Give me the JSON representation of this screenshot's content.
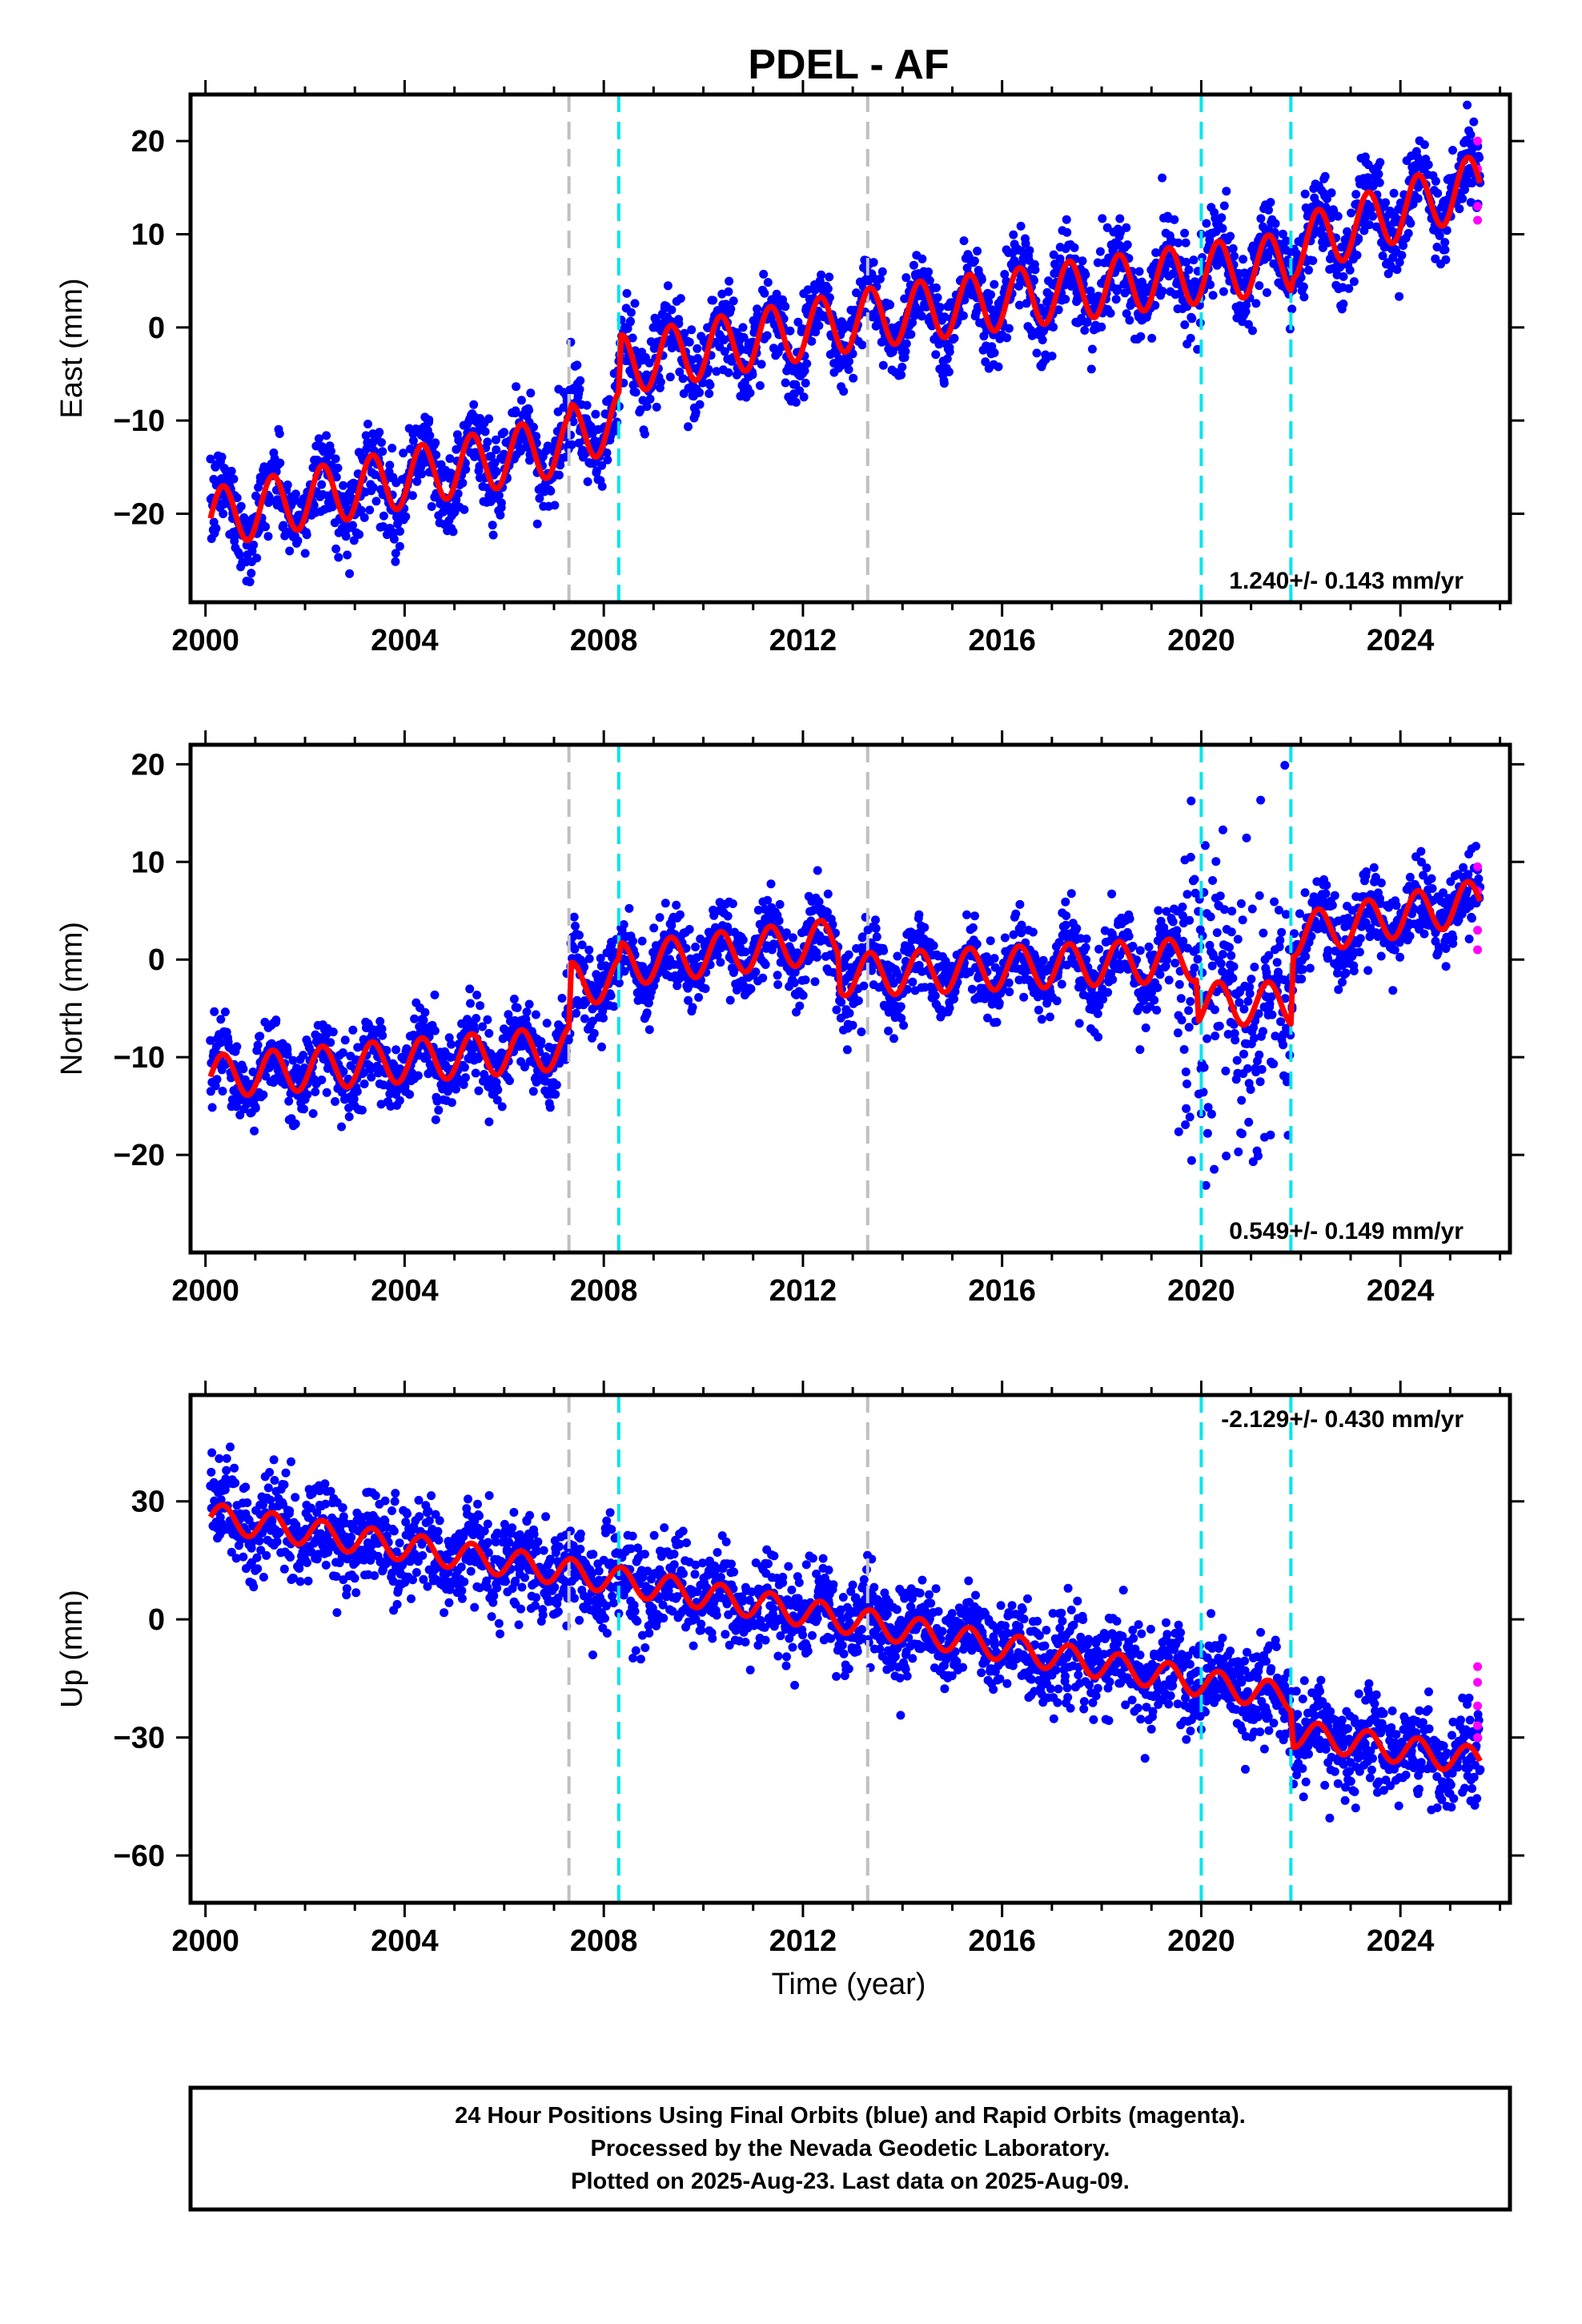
{
  "title": "PDEL - AF",
  "xlabel": "Time (year)",
  "footer": {
    "line1": "24 Hour Positions Using Final Orbits (blue) and Rapid Orbits (magenta).",
    "line2": "Processed by the Nevada Geodetic Laboratory.",
    "line3": "Plotted on 2025-Aug-23. Last data on 2025-Aug-09."
  },
  "colors": {
    "final_orbits": "#0000ff",
    "rapid_orbits": "#ff00ff",
    "model": "#ff0000",
    "equipment_change": "#c0c0c0",
    "earthquake": "#00e5ee"
  },
  "chart_data": [
    {
      "type": "scatter",
      "ylabel": "East (mm)",
      "rate_label": "1.240+/- 0.143 mm/yr",
      "xlim": [
        1999.7,
        2026.2
      ],
      "ylim": [
        -29.5,
        25
      ],
      "x_ticks": [
        2000,
        2004,
        2008,
        2012,
        2016,
        2020,
        2024
      ],
      "x_tick_labels": [
        "2000",
        "2004",
        "2008",
        "2012",
        "2016",
        "2020",
        "2024"
      ],
      "y_ticks": [
        -20,
        -10,
        0,
        10,
        20
      ],
      "y_tick_labels": [
        "−20",
        "−10",
        "0",
        "10",
        "20"
      ],
      "gray_lines": [
        2007.3,
        2013.3
      ],
      "cyan_lines": [
        2008.3,
        2020.0,
        2021.8
      ],
      "model_trend": [
        [
          2000.1,
          -20.5
        ],
        [
          2007.3,
          -12.5
        ],
        [
          2007.35,
          -11.5
        ],
        [
          2008.3,
          -10.0
        ],
        [
          2008.35,
          -4.0
        ],
        [
          2013.3,
          1.0
        ],
        [
          2020.0,
          5.8
        ],
        [
          2021.8,
          7.0
        ],
        [
          2021.85,
          8.5
        ],
        [
          2025.6,
          15.5
        ]
      ],
      "seasonal_amplitude": 3.2,
      "scatter_sd": 2.3,
      "rapid_points": [
        [
          2025.55,
          20.0
        ],
        [
          2025.55,
          17.0
        ],
        [
          2025.55,
          13.0
        ],
        [
          2025.55,
          11.5
        ]
      ]
    },
    {
      "type": "scatter",
      "ylabel": "North (mm)",
      "rate_label": "0.549+/- 0.149 mm/yr",
      "xlim": [
        1999.7,
        2026.2
      ],
      "ylim": [
        -30,
        22
      ],
      "x_ticks": [
        2000,
        2004,
        2008,
        2012,
        2016,
        2020,
        2024
      ],
      "x_tick_labels": [
        "2000",
        "2004",
        "2008",
        "2012",
        "2016",
        "2020",
        "2024"
      ],
      "y_ticks": [
        -20,
        -10,
        0,
        10,
        20
      ],
      "y_tick_labels": [
        "−20",
        "−10",
        "0",
        "10",
        "20"
      ],
      "gray_lines": [
        2007.3,
        2013.3
      ],
      "cyan_lines": [
        2008.3,
        2020.0,
        2021.8
      ],
      "model_trend": [
        [
          2000.1,
          -12.0
        ],
        [
          2007.3,
          -9.0
        ],
        [
          2007.35,
          -2.5
        ],
        [
          2008.3,
          -2.0
        ],
        [
          2008.35,
          -0.5
        ],
        [
          2012.7,
          2.0
        ],
        [
          2012.75,
          -1.5
        ],
        [
          2013.3,
          -1.5
        ],
        [
          2019.9,
          0.0
        ],
        [
          2019.95,
          -4.5
        ],
        [
          2021.8,
          -4.5
        ],
        [
          2021.85,
          2.5
        ],
        [
          2025.6,
          6.0
        ]
      ],
      "seasonal_amplitude": 2.2,
      "scatter_sd": 2.0,
      "rapid_points": [
        [
          2025.55,
          9.5
        ],
        [
          2025.55,
          7.0
        ],
        [
          2025.55,
          3.0
        ],
        [
          2025.55,
          1.0
        ]
      ]
    },
    {
      "type": "scatter",
      "ylabel": "Up (mm)",
      "rate_label": "-2.129+/- 0.430 mm/yr",
      "xlim": [
        1999.7,
        2026.2
      ],
      "ylim": [
        -72,
        57
      ],
      "x_ticks": [
        2000,
        2004,
        2008,
        2012,
        2016,
        2020,
        2024
      ],
      "x_tick_labels": [
        "2000",
        "2004",
        "2008",
        "2012",
        "2016",
        "2020",
        "2024"
      ],
      "y_ticks": [
        -60,
        -30,
        0,
        30
      ],
      "y_tick_labels": [
        "−60",
        "−30",
        "0",
        "30"
      ],
      "gray_lines": [
        2007.3,
        2013.3
      ],
      "cyan_lines": [
        2008.3,
        2020.0,
        2021.8
      ],
      "model_trend": [
        [
          2000.1,
          26.0
        ],
        [
          2007.3,
          12.0
        ],
        [
          2013.3,
          -1.0
        ],
        [
          2021.8,
          -20.0
        ],
        [
          2021.85,
          -29.0
        ],
        [
          2025.6,
          -36.0
        ]
      ],
      "seasonal_amplitude": 3.5,
      "scatter_sd": 6.0,
      "rapid_points": [
        [
          2025.55,
          -12.0
        ],
        [
          2025.55,
          -16.0
        ],
        [
          2025.55,
          -22.0
        ],
        [
          2025.55,
          -27.0
        ],
        [
          2025.55,
          -30.0
        ]
      ]
    }
  ]
}
